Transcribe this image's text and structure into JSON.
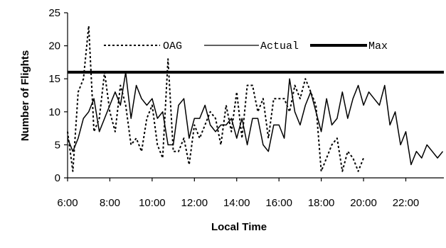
{
  "chart_data": {
    "type": "line",
    "xlabel": "Local Time",
    "ylabel": "Number of Flights",
    "xlim": [
      6.0,
      23.8
    ],
    "ylim": [
      0,
      25
    ],
    "x_ticks": [
      6,
      8,
      10,
      12,
      14,
      16,
      18,
      20,
      22
    ],
    "x_tick_labels": [
      "6:00",
      "8:00",
      "10:00",
      "12:00",
      "14:00",
      "16:00",
      "18:00",
      "20:00",
      "22:00"
    ],
    "y_ticks": [
      0,
      5,
      10,
      15,
      20,
      25
    ],
    "y_tick_labels": [
      "0",
      "5",
      "10",
      "15",
      "20",
      "25"
    ],
    "x_interval_hours": 0.25,
    "legend_position": "top",
    "series": [
      {
        "name": "OAG",
        "style": "dotted",
        "color": "#000000",
        "values": [
          7,
          1,
          13,
          15,
          23,
          7,
          9,
          16,
          10,
          7,
          14,
          11,
          5,
          6,
          4,
          9,
          11,
          5,
          3,
          18,
          4,
          4,
          6,
          2,
          8,
          6,
          8,
          10,
          9,
          5,
          11,
          7,
          13,
          6,
          14,
          14,
          10,
          12,
          6,
          12,
          12,
          12,
          10,
          14,
          12,
          15,
          13,
          11,
          1,
          3,
          5,
          6,
          1,
          4,
          3,
          1,
          3
        ]
      },
      {
        "name": "Actual",
        "style": "solid-thin",
        "color": "#000000",
        "values": [
          6,
          4,
          6,
          9,
          10,
          12,
          7,
          9,
          11,
          13,
          11,
          16,
          9,
          14,
          12,
          11,
          12,
          9,
          10,
          5,
          5,
          11,
          12,
          6,
          9,
          9,
          11,
          8,
          7,
          8,
          8,
          9,
          6,
          9,
          5,
          9,
          9,
          5,
          4,
          8,
          8,
          6,
          15,
          10,
          8,
          11,
          13,
          10,
          7,
          12,
          8,
          9,
          13,
          9,
          12,
          14,
          11,
          13,
          12,
          11,
          14,
          8,
          10,
          5,
          7,
          2,
          4,
          3,
          5,
          4,
          3,
          4
        ]
      },
      {
        "name": "Max",
        "style": "solid-thick",
        "color": "#000000",
        "values": [
          16,
          16
        ]
      }
    ],
    "legend": [
      {
        "label": "OAG",
        "style": "dotted"
      },
      {
        "label": "Actual",
        "style": "solid-thin"
      },
      {
        "label": "Max",
        "style": "solid-thick"
      }
    ]
  }
}
